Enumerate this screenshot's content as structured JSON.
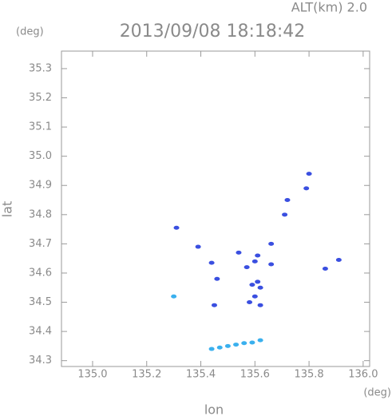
{
  "chart_data": {
    "type": "scatter",
    "altitude_label": "ALT(km) 2.0",
    "title": "2013/09/08 18:18:42",
    "y_unit": "(deg)",
    "x_unit": "(deg)",
    "ylabel": "lat",
    "xlabel": "lon",
    "xlim": [
      134.885,
      136.024
    ],
    "ylim": [
      34.28,
      35.36
    ],
    "xticks": [
      {
        "value": 135.0,
        "label": "135.0"
      },
      {
        "value": 135.2,
        "label": "135.2"
      },
      {
        "value": 135.4,
        "label": "135.4"
      },
      {
        "value": 135.6,
        "label": "135.6"
      },
      {
        "value": 135.8,
        "label": "135.8"
      },
      {
        "value": 136.0,
        "label": "136.0"
      }
    ],
    "yticks": [
      {
        "value": 34.3,
        "label": "34.3"
      },
      {
        "value": 34.4,
        "label": "34.4"
      },
      {
        "value": 34.5,
        "label": "34.5"
      },
      {
        "value": 34.6,
        "label": "34.6"
      },
      {
        "value": 34.7,
        "label": "34.7"
      },
      {
        "value": 34.8,
        "label": "34.8"
      },
      {
        "value": 34.9,
        "label": "34.9"
      },
      {
        "value": 35.0,
        "label": "35.0"
      },
      {
        "value": 35.1,
        "label": "35.1"
      },
      {
        "value": 35.2,
        "label": "35.2"
      },
      {
        "value": 35.3,
        "label": "35.3"
      }
    ],
    "series": [
      {
        "color": "#3a4fe0",
        "x": [
          135.8,
          135.79,
          135.72,
          135.71,
          135.31,
          135.66,
          135.39,
          135.54,
          135.61,
          135.44,
          135.6,
          135.91,
          135.86,
          135.61,
          135.46,
          135.59,
          135.62,
          135.6,
          135.58,
          135.62,
          135.45,
          135.57,
          135.66
        ],
        "y": [
          34.94,
          34.89,
          34.85,
          34.8,
          34.755,
          34.7,
          34.69,
          34.67,
          34.66,
          34.635,
          34.64,
          34.645,
          34.615,
          34.57,
          34.58,
          34.56,
          34.55,
          34.52,
          34.5,
          34.49,
          34.49,
          34.62,
          34.63
        ]
      },
      {
        "color": "#3ab0ee",
        "x": [
          135.3,
          135.44,
          135.47,
          135.5,
          135.53,
          135.56,
          135.59,
          135.62
        ],
        "y": [
          34.52,
          34.34,
          34.345,
          34.35,
          34.355,
          34.36,
          34.362,
          34.37
        ]
      }
    ]
  }
}
